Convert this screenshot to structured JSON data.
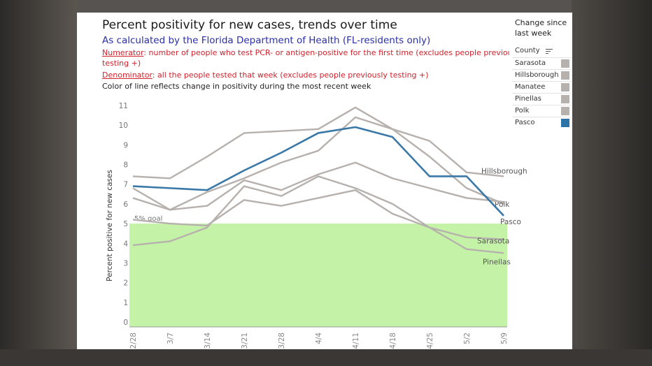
{
  "title": "Percent positivity for new cases, trends over time",
  "subtitle": "As calculated by the Florida Department of Health (FL-residents only)",
  "numerator_label": "Numerator",
  "numerator_text": ": number of people who test PCR- or antigen-positive for the first time (excludes people previously",
  "numerator_text2": "testing +)",
  "denominator_label": "Denominator",
  "denominator_text": ": all the people tested that week (excludes people previously testing +)",
  "color_note": "Color of line reflects change in positivity during the most recent week",
  "side_panel": {
    "heading": "Change since last week",
    "column_header": "County",
    "items": [
      {
        "label": "Sarasota",
        "color": "#b7b1ae"
      },
      {
        "label": "Hillsborough",
        "color": "#b7b1ae"
      },
      {
        "label": "Manatee",
        "color": "#b7b1ae"
      },
      {
        "label": "Pinellas",
        "color": "#b7b1ae"
      },
      {
        "label": "Polk",
        "color": "#b7b1ae"
      },
      {
        "label": "Pasco",
        "color": "#2e73a8"
      }
    ]
  },
  "chart_data": {
    "type": "line",
    "ylabel": "Percent positive for new cases",
    "xlabel": "",
    "x": [
      "2/28",
      "3/7",
      "3/14",
      "3/21",
      "3/28",
      "4/4",
      "4/11",
      "4/18",
      "4/25",
      "5/2",
      "5/9"
    ],
    "ylim": [
      0,
      11
    ],
    "yticks": [
      0,
      1,
      2,
      3,
      4,
      5,
      6,
      7,
      8,
      9,
      10,
      11
    ],
    "goal": {
      "value": 5,
      "label": "5% goal",
      "color": "#c4f3a8"
    },
    "grid": false,
    "series": [
      {
        "name": "Hillsborough",
        "color": "#b7b1ae",
        "values": [
          7.4,
          7.3,
          8.4,
          9.6,
          9.7,
          9.8,
          10.9,
          9.8,
          9.2,
          7.6,
          7.4
        ],
        "end_label": "Hillsborough"
      },
      {
        "name": "Polk",
        "color": "#b7b1ae",
        "values": [
          6.8,
          5.7,
          6.6,
          7.3,
          8.1,
          8.7,
          10.4,
          9.8,
          8.4,
          6.8,
          6.0
        ],
        "end_label": "Polk"
      },
      {
        "name": "Manatee",
        "color": "#b7b1ae",
        "values": [
          6.3,
          5.7,
          5.9,
          7.2,
          6.7,
          7.5,
          8.1,
          7.3,
          6.8,
          6.3,
          6.1
        ],
        "end_label": ""
      },
      {
        "name": "Sarasota",
        "color": "#b7b1ae",
        "values": [
          3.9,
          4.1,
          4.8,
          6.9,
          6.4,
          7.4,
          6.8,
          6.0,
          4.8,
          4.3,
          4.2
        ],
        "end_label": "Sarasota"
      },
      {
        "name": "Pinellas",
        "color": "#b7b1ae",
        "values": [
          5.2,
          5.0,
          4.9,
          6.2,
          5.9,
          6.3,
          6.7,
          5.5,
          4.8,
          3.7,
          3.5
        ],
        "end_label": "Pinellas"
      },
      {
        "name": "Pasco",
        "color": "#3a78a8",
        "values": [
          6.9,
          6.8,
          6.7,
          7.7,
          8.6,
          9.6,
          9.9,
          9.4,
          7.4,
          7.4,
          5.4
        ],
        "end_label": "Pasco"
      }
    ]
  }
}
